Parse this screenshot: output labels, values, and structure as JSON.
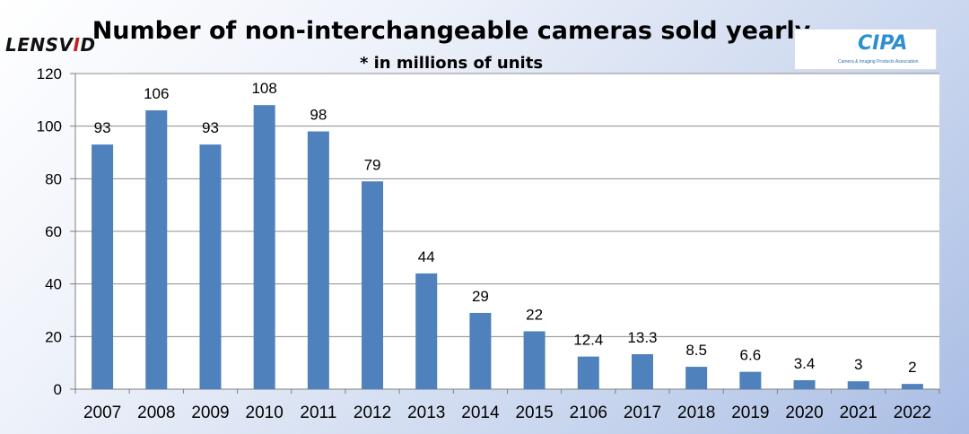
{
  "header": {
    "title": "Number of non-interchangeable cameras sold yearly",
    "subtitle": "* in millions of units"
  },
  "logos": {
    "left": {
      "main": "LENSV",
      "accent": "I",
      "end": "D"
    },
    "right": {
      "mark": "CIPA",
      "subtitle": "Camera & Imaging Products Association"
    }
  },
  "colors": {
    "bar": "#4f81bd",
    "grid": "#8c8c8c",
    "axis": "#7f7f7f",
    "plot_bg": "#ffffff",
    "text": "#000000"
  },
  "chart_data": {
    "type": "bar",
    "title": "Number of non-interchangeable cameras sold yearly",
    "subtitle": "* in millions of units",
    "categories": [
      "2007",
      "2008",
      "2009",
      "2010",
      "2011",
      "2012",
      "2013",
      "2014",
      "2015",
      "2106",
      "2017",
      "2018",
      "2019",
      "2020",
      "2021",
      "2022"
    ],
    "values": [
      93,
      106,
      93,
      108,
      98,
      79,
      44,
      29,
      22,
      12.4,
      13.3,
      8.5,
      6.6,
      3.4,
      3,
      2
    ],
    "labels": [
      "93",
      "106",
      "93",
      "108",
      "98",
      "79",
      "44",
      "29",
      "22",
      "12.4",
      "13.3",
      "8.5",
      "6.6",
      "3.4",
      "3",
      "2"
    ],
    "yticks": [
      "0",
      "20",
      "40",
      "60",
      "80",
      "100",
      "120"
    ],
    "ylim": [
      0,
      120
    ],
    "xlabel": "",
    "ylabel": "",
    "grid": true,
    "legend": "none"
  }
}
